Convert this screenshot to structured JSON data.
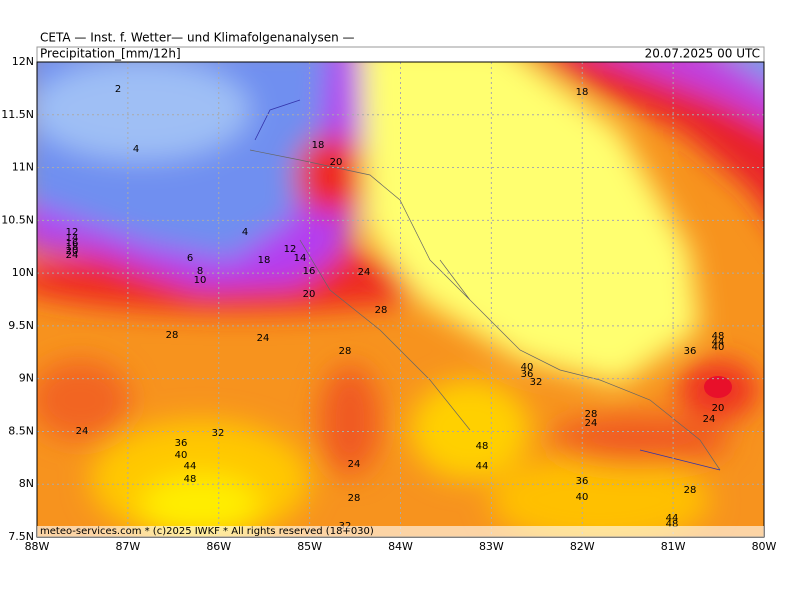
{
  "header": {
    "title": "CETA — Inst. f. Wetter— und Klimafolgenanalysen —",
    "field": "Precipitation_[mm/12h]",
    "valid_time": "20.07.2025 00 UTC"
  },
  "footer": "meteo-services.com * (c)2025 IWKF * All rights reserved (18+030)",
  "x_axis": {
    "labels": [
      "88W",
      "87W",
      "86W",
      "85W",
      "84W",
      "83W",
      "82W",
      "81W",
      "80W"
    ]
  },
  "y_axis": {
    "labels": [
      "12N",
      "11.5N",
      "11N",
      "10.5N",
      "10N",
      "9.5N",
      "9N",
      "8.5N",
      "8N",
      "7.5N"
    ]
  },
  "contour_labels": [
    2,
    4,
    18,
    20,
    18,
    4,
    12,
    14,
    16,
    18,
    20,
    24,
    6,
    8,
    10,
    12,
    14,
    18,
    16,
    20,
    24,
    28,
    28,
    24,
    28,
    40,
    36,
    32,
    48,
    44,
    40,
    36,
    20,
    24,
    28,
    24,
    24,
    36,
    32,
    40,
    44,
    48,
    24,
    48,
    44,
    36,
    40,
    28,
    28,
    44,
    48,
    32
  ]
}
